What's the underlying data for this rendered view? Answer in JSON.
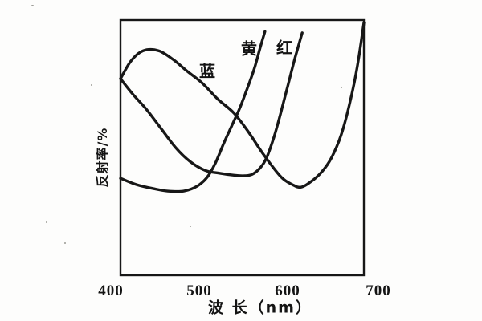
{
  "figure": {
    "background": "#fdfdfc",
    "ink_color": "#171717"
  },
  "y_axis": {
    "title": "反射率/%"
  },
  "x_axis": {
    "title": "波 长（nm）",
    "ticks": [
      "400",
      "500",
      "600",
      "700"
    ]
  },
  "curve_labels": {
    "blue": "蓝",
    "yellow": "黄",
    "red": "红"
  },
  "chart_data": {
    "type": "line",
    "title": "",
    "xlabel": "波长（nm）",
    "ylabel": "反射率/%",
    "xlim": [
      400,
      700
    ],
    "ylim": [
      0,
      100
    ],
    "grid": false,
    "legend_position": "labels-on-curves",
    "series": [
      {
        "name": "蓝",
        "x": [
          400,
          413,
          428,
          447,
          465,
          482,
          500,
          520,
          540,
          558,
          577,
          598,
          612,
          622,
          634,
          648,
          660,
          672,
          683,
          692,
          700
        ],
        "y": [
          77,
          84,
          88,
          88,
          84.5,
          80,
          75.5,
          69,
          63.5,
          56,
          47,
          38.5,
          35.5,
          34.5,
          36.5,
          40.5,
          46,
          55,
          68,
          82,
          99
        ]
      },
      {
        "name": "黄",
        "x": [
          400,
          420,
          440,
          458,
          478,
          495,
          507,
          517,
          527,
          537,
          547,
          556,
          565,
          572,
          578
        ],
        "y": [
          38,
          35.5,
          34,
          33,
          33,
          35,
          38.5,
          44,
          51.5,
          58.5,
          65.5,
          73,
          81,
          89,
          95.5
        ]
      },
      {
        "name": "红",
        "x": [
          400,
          415,
          432,
          450,
          468,
          486,
          505,
          522,
          540,
          552,
          562,
          572,
          580,
          589,
          597,
          606,
          615,
          624
        ],
        "y": [
          77,
          71,
          65,
          57.5,
          50,
          44.5,
          41,
          40,
          39.2,
          39,
          39.5,
          42,
          46,
          54,
          63,
          74,
          85,
          95
        ]
      }
    ]
  }
}
